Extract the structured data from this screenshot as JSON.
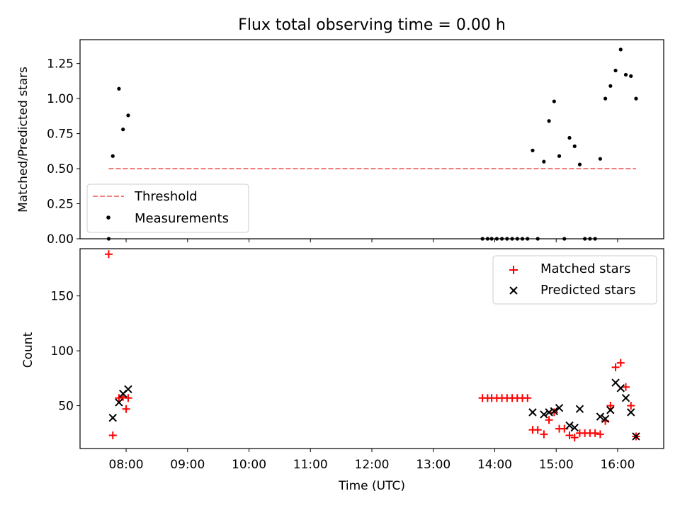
{
  "chart_data": [
    {
      "type": "scatter",
      "title": "Flux total observing time = 0.00 h",
      "ylabel": "Matched/Predicted stars",
      "ylim": [
        0,
        1.42
      ],
      "yticks": [
        0,
        0.25,
        0.5,
        0.75,
        1.0,
        1.25
      ],
      "ytick_labels": [
        "0.00",
        "0.25",
        "0.50",
        "0.75",
        "1.00",
        "1.25"
      ],
      "legend": {
        "position": "bottom-left",
        "entries": [
          "Threshold",
          "Measurements"
        ]
      },
      "threshold": {
        "name": "Threshold",
        "value": 0.5,
        "x": [
          "07:43",
          "16:18"
        ],
        "color": "#f08080"
      },
      "measurements": {
        "name": "Measurements",
        "color": "#000000",
        "points": [
          [
            "07:43",
            0.0
          ],
          [
            "07:47",
            0.59
          ],
          [
            "07:53",
            1.07
          ],
          [
            "07:57",
            0.78
          ],
          [
            "08:02",
            0.88
          ],
          [
            "13:48",
            0.0
          ],
          [
            "13:53",
            0.0
          ],
          [
            "13:57",
            0.0
          ],
          [
            "14:02",
            0.0
          ],
          [
            "14:07",
            0.0
          ],
          [
            "14:12",
            0.0
          ],
          [
            "14:17",
            0.0
          ],
          [
            "14:22",
            0.0
          ],
          [
            "14:27",
            0.0
          ],
          [
            "14:32",
            0.0
          ],
          [
            "14:37",
            0.63
          ],
          [
            "14:42",
            0.0
          ],
          [
            "14:48",
            0.55
          ],
          [
            "14:53",
            0.84
          ],
          [
            "14:58",
            0.98
          ],
          [
            "15:03",
            0.59
          ],
          [
            "15:08",
            0.0
          ],
          [
            "15:13",
            0.72
          ],
          [
            "15:18",
            0.66
          ],
          [
            "15:23",
            0.53
          ],
          [
            "15:28",
            0.0
          ],
          [
            "15:33",
            0.0
          ],
          [
            "15:38",
            0.0
          ],
          [
            "15:43",
            0.57
          ],
          [
            "15:48",
            1.0
          ],
          [
            "15:53",
            1.09
          ],
          [
            "15:58",
            1.2
          ],
          [
            "16:03",
            1.35
          ],
          [
            "16:08",
            1.17
          ],
          [
            "16:13",
            1.16
          ],
          [
            "16:18",
            1.0
          ]
        ]
      }
    },
    {
      "type": "scatter",
      "xlabel": "Time (UTC)",
      "ylabel": "Count",
      "ylim": [
        11,
        193
      ],
      "yticks": [
        50,
        100,
        150
      ],
      "ytick_labels": [
        "50",
        "100",
        "150"
      ],
      "xlim": [
        "07:15",
        "16:45"
      ],
      "xticks": [
        "08:00",
        "09:00",
        "10:00",
        "11:00",
        "12:00",
        "13:00",
        "14:00",
        "15:00",
        "16:00"
      ],
      "legend": {
        "position": "top-right",
        "entries": [
          "Matched stars",
          "Predicted stars"
        ]
      },
      "series": [
        {
          "name": "Matched stars",
          "marker": "+",
          "color": "#ff0000",
          "points": [
            [
              "07:43",
              188
            ],
            [
              "07:47",
              23
            ],
            [
              "07:53",
              57
            ],
            [
              "07:57",
              58
            ],
            [
              "08:00",
              47
            ],
            [
              "08:02",
              57
            ],
            [
              "13:48",
              57
            ],
            [
              "13:53",
              57
            ],
            [
              "13:57",
              57
            ],
            [
              "14:02",
              57
            ],
            [
              "14:07",
              57
            ],
            [
              "14:12",
              57
            ],
            [
              "14:17",
              57
            ],
            [
              "14:22",
              57
            ],
            [
              "14:27",
              57
            ],
            [
              "14:32",
              57
            ],
            [
              "14:37",
              28
            ],
            [
              "14:42",
              28
            ],
            [
              "14:48",
              24
            ],
            [
              "14:53",
              37
            ],
            [
              "14:58",
              44
            ],
            [
              "15:03",
              29
            ],
            [
              "15:08",
              29
            ],
            [
              "15:13",
              23
            ],
            [
              "15:18",
              21
            ],
            [
              "15:23",
              25
            ],
            [
              "15:28",
              25
            ],
            [
              "15:33",
              25
            ],
            [
              "15:38",
              25
            ],
            [
              "15:43",
              24
            ],
            [
              "15:48",
              36
            ],
            [
              "15:53",
              50
            ],
            [
              "15:58",
              85
            ],
            [
              "16:03",
              89
            ],
            [
              "16:08",
              67
            ],
            [
              "16:13",
              50
            ],
            [
              "16:18",
              22
            ]
          ]
        },
        {
          "name": "Predicted stars",
          "marker": "x",
          "color": "#000000",
          "points": [
            [
              "07:47",
              39
            ],
            [
              "07:53",
              53
            ],
            [
              "07:57",
              61
            ],
            [
              "08:02",
              65
            ],
            [
              "14:37",
              44
            ],
            [
              "14:48",
              42
            ],
            [
              "14:53",
              44
            ],
            [
              "14:58",
              45
            ],
            [
              "15:03",
              48
            ],
            [
              "15:13",
              32
            ],
            [
              "15:18",
              30
            ],
            [
              "15:23",
              47
            ],
            [
              "15:43",
              40
            ],
            [
              "15:48",
              38
            ],
            [
              "15:53",
              46
            ],
            [
              "15:58",
              71
            ],
            [
              "16:03",
              66
            ],
            [
              "16:08",
              57
            ],
            [
              "16:13",
              44
            ],
            [
              "16:18",
              22
            ]
          ]
        }
      ]
    }
  ]
}
